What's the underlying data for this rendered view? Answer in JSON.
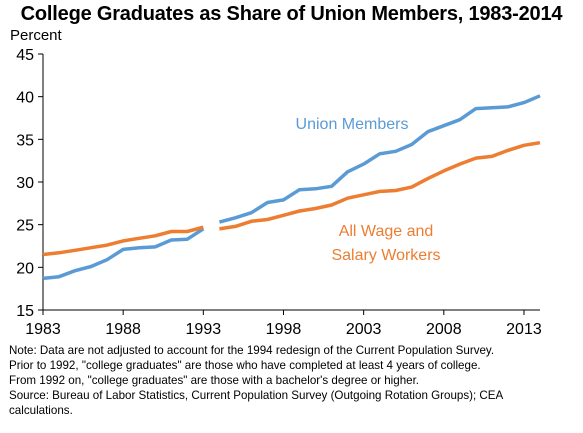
{
  "chart_data": {
    "type": "line",
    "title": "College Graduates as Share of Union Members, 1983-2014",
    "ylabel": "Percent",
    "xlabel": "",
    "ylim": [
      15,
      45
    ],
    "xlim": [
      1983,
      2014
    ],
    "yticks": [
      15,
      20,
      25,
      30,
      35,
      40,
      45
    ],
    "xticks": [
      1983,
      1988,
      1993,
      1998,
      2003,
      2008,
      2013
    ],
    "grid": false,
    "series": [
      {
        "name": "Union Members",
        "color": "#5b9bd5",
        "segments": [
          {
            "x": [
              1983,
              1984,
              1985,
              1986,
              1987,
              1988,
              1989,
              1990,
              1991,
              1992,
              1993
            ],
            "y": [
              18.7,
              18.9,
              19.6,
              20.1,
              20.9,
              22.1,
              22.3,
              22.4,
              23.2,
              23.3,
              24.5
            ]
          },
          {
            "x": [
              1994,
              1995,
              1996,
              1997,
              1998,
              1999,
              2000,
              2001,
              2002,
              2003,
              2004,
              2005,
              2006,
              2007,
              2008,
              2009,
              2010,
              2011,
              2012,
              2013,
              2014
            ],
            "y": [
              25.3,
              25.8,
              26.4,
              27.6,
              27.9,
              29.1,
              29.2,
              29.5,
              31.2,
              32.1,
              33.3,
              33.6,
              34.4,
              35.9,
              36.6,
              37.3,
              38.6,
              38.7,
              38.8,
              39.3,
              40.1
            ]
          }
        ]
      },
      {
        "name": "All Wage and Salary Workers",
        "color": "#ed7d31",
        "segments": [
          {
            "x": [
              1983,
              1984,
              1985,
              1986,
              1987,
              1988,
              1989,
              1990,
              1991,
              1992,
              1993
            ],
            "y": [
              21.5,
              21.7,
              22.0,
              22.3,
              22.6,
              23.1,
              23.4,
              23.7,
              24.2,
              24.2,
              24.7
            ]
          },
          {
            "x": [
              1994,
              1995,
              1996,
              1997,
              1998,
              1999,
              2000,
              2001,
              2002,
              2003,
              2004,
              2005,
              2006,
              2007,
              2008,
              2009,
              2010,
              2011,
              2012,
              2013,
              2014
            ],
            "y": [
              24.5,
              24.8,
              25.4,
              25.6,
              26.1,
              26.6,
              26.9,
              27.3,
              28.1,
              28.5,
              28.9,
              29.0,
              29.4,
              30.4,
              31.3,
              32.1,
              32.8,
              33.0,
              33.7,
              34.3,
              34.6
            ]
          }
        ]
      }
    ],
    "annotations": [
      {
        "series": "Union Members",
        "lines": [
          "Union Members"
        ]
      },
      {
        "series": "All Wage and Salary Workers",
        "lines": [
          "All Wage and",
          "Salary Workers"
        ]
      }
    ]
  },
  "notes": [
    "Note: Data are not adjusted to account for the 1994 redesign of the Current Population Survey.",
    "Prior to 1992, \"college graduates\" are those who have completed at least 4 years of college.",
    "From 1992 on, \"college graduates\" are those with a bachelor's degree or higher.",
    "Source: Bureau of Labor Statistics, Current Population Survey (Outgoing Rotation Groups); CEA",
    "calculations."
  ]
}
